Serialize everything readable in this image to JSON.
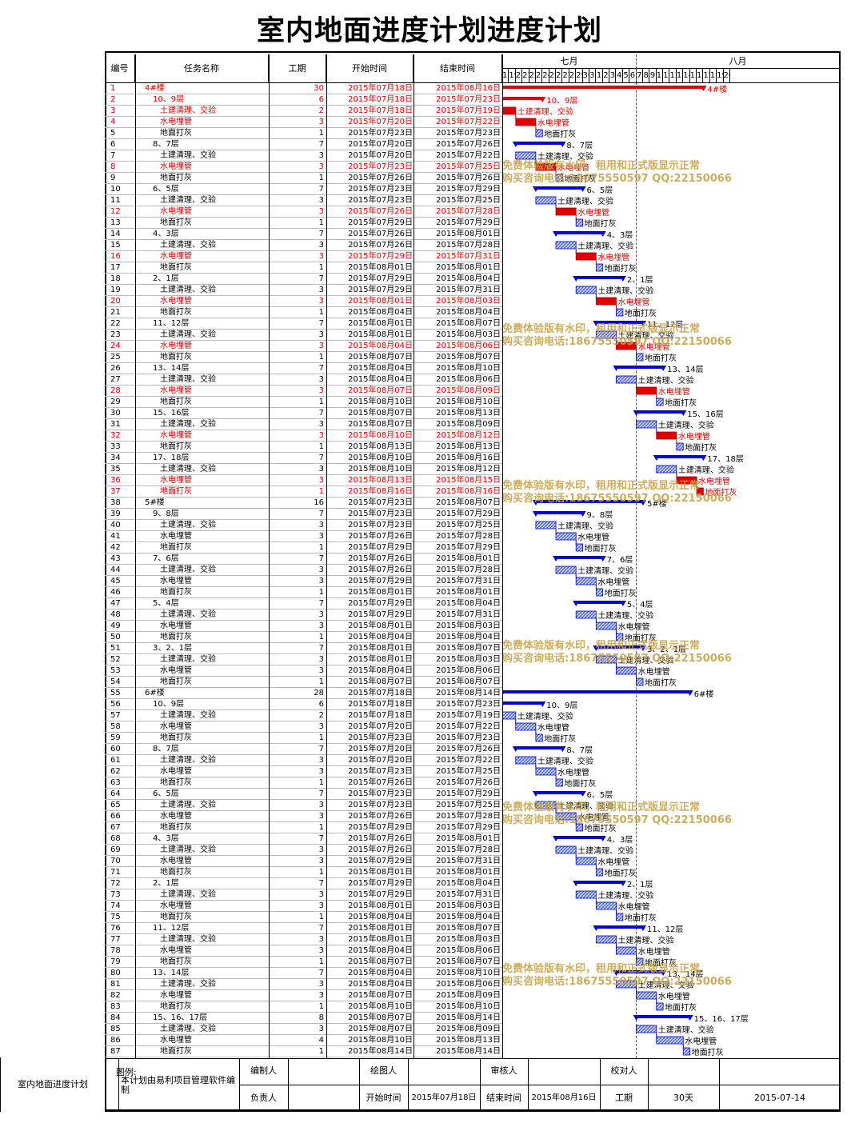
{
  "title": "室内地面进度计划进度计划",
  "headers": {
    "id": "编号",
    "name": "任务名称",
    "duration": "工期",
    "start": "开始时间",
    "end": "结束时间"
  },
  "months": {
    "july": "七月",
    "august": "八月"
  },
  "days": [
    "18",
    "19",
    "20",
    "21",
    "22",
    "23",
    "24",
    "25",
    "26",
    "27",
    "28",
    "29",
    "30",
    "31",
    "1",
    "2",
    "3",
    "4",
    "5",
    "6",
    "7",
    "8",
    "9",
    "10",
    "11",
    "12",
    "13",
    "14",
    "15",
    "16",
    "17",
    "18",
    "19",
    "20"
  ],
  "colors": {
    "red": "#e00000",
    "blue": "#0000e0",
    "hatch": "#3355cc",
    "watermark": "#c8a54c"
  },
  "watermark": {
    "line1": "免费体验版有水印，租用和正式版显示正常",
    "line2": "购买咨询电话:18675550597 QQ:22150066"
  },
  "tasks": [
    {
      "id": "1",
      "name": "4#楼",
      "dur": "30",
      "start": "2015年07月18日",
      "end": "2015年08月16日",
      "red": true,
      "level": 0,
      "label": "4#楼"
    },
    {
      "id": "2",
      "name": "10、9层",
      "dur": "6",
      "start": "2015年07月18日",
      "end": "2015年07月23日",
      "red": true,
      "level": 1,
      "label": "10、9层"
    },
    {
      "id": "3",
      "name": "土建清理、交验",
      "dur": "2",
      "start": "2015年07月18日",
      "end": "2015年07月19日",
      "red": true,
      "level": 2,
      "label": "土建清理、交验"
    },
    {
      "id": "4",
      "name": "水电埋管",
      "dur": "3",
      "start": "2015年07月20日",
      "end": "2015年07月22日",
      "red": true,
      "level": 2,
      "label": "水电埋管"
    },
    {
      "id": "5",
      "name": "地面打灰",
      "dur": "1",
      "start": "2015年07月23日",
      "end": "2015年07月23日",
      "red": false,
      "level": 2,
      "label": "地面打灰"
    },
    {
      "id": "6",
      "name": "8、7层",
      "dur": "7",
      "start": "2015年07月20日",
      "end": "2015年07月26日",
      "red": false,
      "level": 1,
      "label": "8、7层"
    },
    {
      "id": "7",
      "name": "土建清理、交验",
      "dur": "3",
      "start": "2015年07月20日",
      "end": "2015年07月22日",
      "red": false,
      "level": 2,
      "label": "土建清理、交验"
    },
    {
      "id": "8",
      "name": "水电埋管",
      "dur": "3",
      "start": "2015年07月23日",
      "end": "2015年07月25日",
      "red": true,
      "level": 2,
      "label": "水电埋管"
    },
    {
      "id": "9",
      "name": "地面打灰",
      "dur": "1",
      "start": "2015年07月26日",
      "end": "2015年07月26日",
      "red": false,
      "level": 2,
      "label": "地面打灰"
    },
    {
      "id": "10",
      "name": "6、5层",
      "dur": "7",
      "start": "2015年07月23日",
      "end": "2015年07月29日",
      "red": false,
      "level": 1,
      "label": "6、5层"
    },
    {
      "id": "11",
      "name": "土建清理、交验",
      "dur": "3",
      "start": "2015年07月23日",
      "end": "2015年07月25日",
      "red": false,
      "level": 2,
      "label": "土建清理、交验"
    },
    {
      "id": "12",
      "name": "水电埋管",
      "dur": "3",
      "start": "2015年07月26日",
      "end": "2015年07月28日",
      "red": true,
      "level": 2,
      "label": "水电埋管"
    },
    {
      "id": "13",
      "name": "地面打灰",
      "dur": "1",
      "start": "2015年07月29日",
      "end": "2015年07月29日",
      "red": false,
      "level": 2,
      "label": "地面打灰"
    },
    {
      "id": "14",
      "name": "4、3层",
      "dur": "7",
      "start": "2015年07月26日",
      "end": "2015年08月01日",
      "red": false,
      "level": 1,
      "label": "4、3层"
    },
    {
      "id": "15",
      "name": "土建清理、交验",
      "dur": "3",
      "start": "2015年07月26日",
      "end": "2015年07月28日",
      "red": false,
      "level": 2,
      "label": "土建清理、交验"
    },
    {
      "id": "16",
      "name": "水电埋管",
      "dur": "3",
      "start": "2015年07月29日",
      "end": "2015年07月31日",
      "red": true,
      "level": 2,
      "label": "水电埋管"
    },
    {
      "id": "17",
      "name": "地面打灰",
      "dur": "1",
      "start": "2015年08月01日",
      "end": "2015年08月01日",
      "red": false,
      "level": 2,
      "label": "地面打灰"
    },
    {
      "id": "18",
      "name": "2、1层",
      "dur": "7",
      "start": "2015年07月29日",
      "end": "2015年08月04日",
      "red": false,
      "level": 1,
      "label": "2、1层"
    },
    {
      "id": "19",
      "name": "土建清理、交验",
      "dur": "3",
      "start": "2015年07月29日",
      "end": "2015年07月31日",
      "red": false,
      "level": 2,
      "label": "土建清理、交验"
    },
    {
      "id": "20",
      "name": "水电埋管",
      "dur": "3",
      "start": "2015年08月01日",
      "end": "2015年08月03日",
      "red": true,
      "level": 2,
      "label": "水电埋管"
    },
    {
      "id": "21",
      "name": "地面打灰",
      "dur": "1",
      "start": "2015年08月04日",
      "end": "2015年08月04日",
      "red": false,
      "level": 2,
      "label": "地面打灰"
    },
    {
      "id": "22",
      "name": "11、12层",
      "dur": "7",
      "start": "2015年08月01日",
      "end": "2015年08月07日",
      "red": false,
      "level": 1,
      "label": "11、12层"
    },
    {
      "id": "23",
      "name": "土建清理、交验",
      "dur": "3",
      "start": "2015年08月01日",
      "end": "2015年08月03日",
      "red": false,
      "level": 2,
      "label": "土建清理、交验"
    },
    {
      "id": "24",
      "name": "水电埋管",
      "dur": "3",
      "start": "2015年08月04日",
      "end": "2015年08月06日",
      "red": true,
      "level": 2,
      "label": "水电埋管"
    },
    {
      "id": "25",
      "name": "地面打灰",
      "dur": "1",
      "start": "2015年08月07日",
      "end": "2015年08月07日",
      "red": false,
      "level": 2,
      "label": "地面打灰"
    },
    {
      "id": "26",
      "name": "13、14层",
      "dur": "7",
      "start": "2015年08月04日",
      "end": "2015年08月10日",
      "red": false,
      "level": 1,
      "label": "13、14层"
    },
    {
      "id": "27",
      "name": "土建清理、交验",
      "dur": "3",
      "start": "2015年08月04日",
      "end": "2015年08月06日",
      "red": false,
      "level": 2,
      "label": "土建清理、交验"
    },
    {
      "id": "28",
      "name": "水电埋管",
      "dur": "3",
      "start": "2015年08月07日",
      "end": "2015年08月09日",
      "red": true,
      "level": 2,
      "label": "水电埋管"
    },
    {
      "id": "29",
      "name": "地面打灰",
      "dur": "1",
      "start": "2015年08月10日",
      "end": "2015年08月10日",
      "red": false,
      "level": 2,
      "label": "地面打灰"
    },
    {
      "id": "30",
      "name": "15、16层",
      "dur": "7",
      "start": "2015年08月07日",
      "end": "2015年08月13日",
      "red": false,
      "level": 1,
      "label": "15、16层"
    },
    {
      "id": "31",
      "name": "土建清理、交验",
      "dur": "3",
      "start": "2015年08月07日",
      "end": "2015年08月09日",
      "red": false,
      "level": 2,
      "label": "土建清理、交验"
    },
    {
      "id": "32",
      "name": "水电埋管",
      "dur": "3",
      "start": "2015年08月10日",
      "end": "2015年08月12日",
      "red": true,
      "level": 2,
      "label": "水电埋管"
    },
    {
      "id": "33",
      "name": "地面打灰",
      "dur": "1",
      "start": "2015年08月13日",
      "end": "2015年08月13日",
      "red": false,
      "level": 2,
      "label": "地面打灰"
    },
    {
      "id": "34",
      "name": "17、18层",
      "dur": "7",
      "start": "2015年08月10日",
      "end": "2015年08月16日",
      "red": false,
      "level": 1,
      "label": "17、18层"
    },
    {
      "id": "35",
      "name": "土建清理、交验",
      "dur": "3",
      "start": "2015年08月10日",
      "end": "2015年08月12日",
      "red": false,
      "level": 2,
      "label": "土建清理、交验"
    },
    {
      "id": "36",
      "name": "水电埋管",
      "dur": "3",
      "start": "2015年08月13日",
      "end": "2015年08月15日",
      "red": true,
      "level": 2,
      "label": "水电埋管"
    },
    {
      "id": "37",
      "name": "地面打灰",
      "dur": "1",
      "start": "2015年08月16日",
      "end": "2015年08月16日",
      "red": true,
      "level": 2,
      "label": "地面打灰"
    },
    {
      "id": "38",
      "name": "5#楼",
      "dur": "16",
      "start": "2015年07月23日",
      "end": "2015年08月07日",
      "red": false,
      "level": 0,
      "label": "5#楼"
    },
    {
      "id": "39",
      "name": "9、8层",
      "dur": "7",
      "start": "2015年07月23日",
      "end": "2015年07月29日",
      "red": false,
      "level": 1,
      "label": "9、8层"
    },
    {
      "id": "40",
      "name": "土建清理、交验",
      "dur": "3",
      "start": "2015年07月23日",
      "end": "2015年07月25日",
      "red": false,
      "level": 2,
      "label": "土建清理、交验"
    },
    {
      "id": "41",
      "name": "水电埋管",
      "dur": "3",
      "start": "2015年07月26日",
      "end": "2015年07月28日",
      "red": false,
      "level": 2,
      "label": "水电埋管"
    },
    {
      "id": "42",
      "name": "地面打灰",
      "dur": "1",
      "start": "2015年07月29日",
      "end": "2015年07月29日",
      "red": false,
      "level": 2,
      "label": "地面打灰"
    },
    {
      "id": "43",
      "name": "7、6层",
      "dur": "7",
      "start": "2015年07月26日",
      "end": "2015年08月01日",
      "red": false,
      "level": 1,
      "label": "7、6层"
    },
    {
      "id": "44",
      "name": "土建清理、交验",
      "dur": "3",
      "start": "2015年07月26日",
      "end": "2015年07月28日",
      "red": false,
      "level": 2,
      "label": "土建清理、交验"
    },
    {
      "id": "45",
      "name": "水电埋管",
      "dur": "3",
      "start": "2015年07月29日",
      "end": "2015年07月31日",
      "red": false,
      "level": 2,
      "label": "水电埋管"
    },
    {
      "id": "46",
      "name": "地面打灰",
      "dur": "1",
      "start": "2015年08月01日",
      "end": "2015年08月01日",
      "red": false,
      "level": 2,
      "label": "地面打灰"
    },
    {
      "id": "47",
      "name": "5、4层",
      "dur": "7",
      "start": "2015年07月29日",
      "end": "2015年08月04日",
      "red": false,
      "level": 1,
      "label": "5、4层"
    },
    {
      "id": "48",
      "name": "土建清理、交验",
      "dur": "3",
      "start": "2015年07月29日",
      "end": "2015年07月31日",
      "red": false,
      "level": 2,
      "label": "土建清理、交验"
    },
    {
      "id": "49",
      "name": "水电埋管",
      "dur": "3",
      "start": "2015年08月01日",
      "end": "2015年08月03日",
      "red": false,
      "level": 2,
      "label": "水电埋管"
    },
    {
      "id": "50",
      "name": "地面打灰",
      "dur": "1",
      "start": "2015年08月04日",
      "end": "2015年08月04日",
      "red": false,
      "level": 2,
      "label": "地面打灰"
    },
    {
      "id": "51",
      "name": "3、2、1层",
      "dur": "7",
      "start": "2015年08月01日",
      "end": "2015年08月07日",
      "red": false,
      "level": 1,
      "label": "3、2、1层"
    },
    {
      "id": "52",
      "name": "土建清理、交验",
      "dur": "3",
      "start": "2015年08月01日",
      "end": "2015年08月03日",
      "red": false,
      "level": 2,
      "label": "土建清理、交验"
    },
    {
      "id": "53",
      "name": "水电埋管",
      "dur": "3",
      "start": "2015年08月04日",
      "end": "2015年08月06日",
      "red": false,
      "level": 2,
      "label": "水电埋管"
    },
    {
      "id": "54",
      "name": "地面打灰",
      "dur": "1",
      "start": "2015年08月07日",
      "end": "2015年08月07日",
      "red": false,
      "level": 2,
      "label": "地面打灰"
    },
    {
      "id": "55",
      "name": "6#楼",
      "dur": "28",
      "start": "2015年07月18日",
      "end": "2015年08月14日",
      "red": false,
      "level": 0,
      "label": "6#楼"
    },
    {
      "id": "56",
      "name": "10、9层",
      "dur": "6",
      "start": "2015年07月18日",
      "end": "2015年07月23日",
      "red": false,
      "level": 1,
      "label": "10、9层"
    },
    {
      "id": "57",
      "name": "土建清理、交验",
      "dur": "2",
      "start": "2015年07月18日",
      "end": "2015年07月19日",
      "red": false,
      "level": 2,
      "label": "土建清理、交验"
    },
    {
      "id": "58",
      "name": "水电埋管",
      "dur": "3",
      "start": "2015年07月20日",
      "end": "2015年07月22日",
      "red": false,
      "level": 2,
      "label": "水电埋管"
    },
    {
      "id": "59",
      "name": "地面打灰",
      "dur": "1",
      "start": "2015年07月23日",
      "end": "2015年07月23日",
      "red": false,
      "level": 2,
      "label": "地面打灰"
    },
    {
      "id": "60",
      "name": "8、7层",
      "dur": "7",
      "start": "2015年07月20日",
      "end": "2015年07月26日",
      "red": false,
      "level": 1,
      "label": "8、7层"
    },
    {
      "id": "61",
      "name": "土建清理、交验",
      "dur": "3",
      "start": "2015年07月20日",
      "end": "2015年07月22日",
      "red": false,
      "level": 2,
      "label": "土建清理、交验"
    },
    {
      "id": "62",
      "name": "水电埋管",
      "dur": "3",
      "start": "2015年07月23日",
      "end": "2015年07月25日",
      "red": false,
      "level": 2,
      "label": "水电埋管"
    },
    {
      "id": "63",
      "name": "地面打灰",
      "dur": "1",
      "start": "2015年07月26日",
      "end": "2015年07月26日",
      "red": false,
      "level": 2,
      "label": "地面打灰"
    },
    {
      "id": "64",
      "name": "6、5层",
      "dur": "7",
      "start": "2015年07月23日",
      "end": "2015年07月29日",
      "red": false,
      "level": 1,
      "label": "6、5层"
    },
    {
      "id": "65",
      "name": "土建清理、交验",
      "dur": "3",
      "start": "2015年07月23日",
      "end": "2015年07月25日",
      "red": false,
      "level": 2,
      "label": "土建清理、交验"
    },
    {
      "id": "66",
      "name": "水电埋管",
      "dur": "3",
      "start": "2015年07月26日",
      "end": "2015年07月28日",
      "red": false,
      "level": 2,
      "label": "水电埋管"
    },
    {
      "id": "67",
      "name": "地面打灰",
      "dur": "1",
      "start": "2015年07月29日",
      "end": "2015年07月29日",
      "red": false,
      "level": 2,
      "label": "地面打灰"
    },
    {
      "id": "68",
      "name": "4、3层",
      "dur": "7",
      "start": "2015年07月26日",
      "end": "2015年08月01日",
      "red": false,
      "level": 1,
      "label": "4、3层"
    },
    {
      "id": "69",
      "name": "土建清理、交验",
      "dur": "3",
      "start": "2015年07月26日",
      "end": "2015年07月28日",
      "red": false,
      "level": 2,
      "label": "土建清理、交验"
    },
    {
      "id": "70",
      "name": "水电埋管",
      "dur": "3",
      "start": "2015年07月29日",
      "end": "2015年07月31日",
      "red": false,
      "level": 2,
      "label": "水电埋管"
    },
    {
      "id": "71",
      "name": "地面打灰",
      "dur": "1",
      "start": "2015年08月01日",
      "end": "2015年08月01日",
      "red": false,
      "level": 2,
      "label": "地面打灰"
    },
    {
      "id": "72",
      "name": "2、1层",
      "dur": "7",
      "start": "2015年07月29日",
      "end": "2015年08月04日",
      "red": false,
      "level": 1,
      "label": "2、1层"
    },
    {
      "id": "73",
      "name": "土建清理、交验",
      "dur": "3",
      "start": "2015年07月29日",
      "end": "2015年07月31日",
      "red": false,
      "level": 2,
      "label": "土建清理、交验"
    },
    {
      "id": "74",
      "name": "水电埋管",
      "dur": "3",
      "start": "2015年08月01日",
      "end": "2015年08月03日",
      "red": false,
      "level": 2,
      "label": "水电埋管"
    },
    {
      "id": "75",
      "name": "地面打灰",
      "dur": "1",
      "start": "2015年08月04日",
      "end": "2015年08月04日",
      "red": false,
      "level": 2,
      "label": "地面打灰"
    },
    {
      "id": "76",
      "name": "11、12层",
      "dur": "7",
      "start": "2015年08月01日",
      "end": "2015年08月07日",
      "red": false,
      "level": 1,
      "label": "11、12层"
    },
    {
      "id": "77",
      "name": "土建清理、交验",
      "dur": "3",
      "start": "2015年08月01日",
      "end": "2015年08月03日",
      "red": false,
      "level": 2,
      "label": "土建清理、交验"
    },
    {
      "id": "78",
      "name": "水电埋管",
      "dur": "3",
      "start": "2015年08月04日",
      "end": "2015年08月06日",
      "red": false,
      "level": 2,
      "label": "水电埋管"
    },
    {
      "id": "79",
      "name": "地面打灰",
      "dur": "1",
      "start": "2015年08月07日",
      "end": "2015年08月07日",
      "red": false,
      "level": 2,
      "label": "地面打灰"
    },
    {
      "id": "80",
      "name": "13、14层",
      "dur": "7",
      "start": "2015年08月04日",
      "end": "2015年08月10日",
      "red": false,
      "level": 1,
      "label": "13、14层"
    },
    {
      "id": "81",
      "name": "土建清理、交验",
      "dur": "3",
      "start": "2015年08月04日",
      "end": "2015年08月06日",
      "red": false,
      "level": 2,
      "label": "土建清理、交验"
    },
    {
      "id": "82",
      "name": "水电埋管",
      "dur": "3",
      "start": "2015年08月07日",
      "end": "2015年08月09日",
      "red": false,
      "level": 2,
      "label": "水电埋管"
    },
    {
      "id": "83",
      "name": "地面打灰",
      "dur": "1",
      "start": "2015年08月10日",
      "end": "2015年08月10日",
      "red": false,
      "level": 2,
      "label": "地面打灰"
    },
    {
      "id": "84",
      "name": "15、16、17层",
      "dur": "8",
      "start": "2015年08月07日",
      "end": "2015年08月14日",
      "red": false,
      "level": 1,
      "label": "15、16、17层"
    },
    {
      "id": "85",
      "name": "土建清理、交验",
      "dur": "3",
      "start": "2015年08月07日",
      "end": "2015年08月09日",
      "red": false,
      "level": 2,
      "label": "土建清理、交验"
    },
    {
      "id": "86",
      "name": "水电埋管",
      "dur": "4",
      "start": "2015年08月10日",
      "end": "2015年08月13日",
      "red": false,
      "level": 2,
      "label": "水电埋管"
    },
    {
      "id": "87",
      "name": "地面打灰",
      "dur": "1",
      "start": "2015年08月14日",
      "end": "2015年08月14日",
      "red": false,
      "level": 2,
      "label": "地面打灰"
    }
  ],
  "footer": {
    "side_label": "室内地面进度计划",
    "legend": "图例:",
    "note": "本计划由易利项目管理软件编制",
    "compiler": "编制人",
    "drawer": "绘图人",
    "reviewer": "审核人",
    "checker": "校对人",
    "owner": "负责人",
    "start_label": "开始时间",
    "start_value": "2015年07月18日",
    "end_label": "结束时间",
    "end_value": "2015年08月16日",
    "dur_label": "工期",
    "dur_value": "30天",
    "date": "2015-07-14"
  }
}
